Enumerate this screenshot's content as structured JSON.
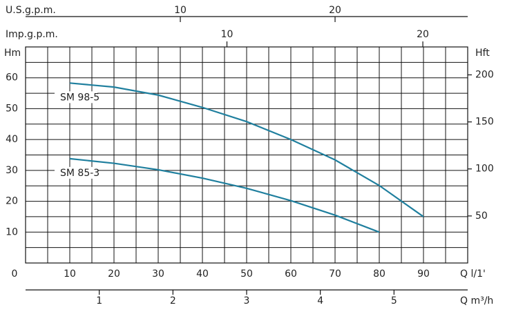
{
  "chart_data": {
    "type": "line",
    "xlabel": "Q l/1'",
    "xlim": [
      0,
      100
    ],
    "xticks": [
      0,
      10,
      20,
      30,
      40,
      50,
      60,
      70,
      80,
      90
    ],
    "xgrid": [
      0,
      5,
      10,
      15,
      20,
      25,
      30,
      35,
      40,
      45,
      50,
      55,
      60,
      65,
      70,
      75,
      80,
      85,
      90,
      95,
      100
    ],
    "ylabel": "Hm",
    "ylim": [
      0,
      70
    ],
    "yticks": [
      10,
      20,
      30,
      40,
      50,
      60
    ],
    "ygrid": [
      0,
      5,
      10,
      15,
      20,
      25,
      30,
      35,
      40,
      45,
      50,
      55,
      60,
      65,
      70
    ],
    "y2label": "Hft",
    "y2lim": [
      0,
      229.7
    ],
    "y2ticks": [
      50,
      100,
      150,
      200
    ],
    "top_axes": [
      {
        "label": "U.S.g.p.m.",
        "lim": [
          0,
          28.57
        ],
        "ticks": [
          10,
          20
        ]
      },
      {
        "label": "Imp.g.p.m.",
        "lim": [
          -0.28,
          22.29
        ],
        "ticks": [
          10,
          20
        ]
      }
    ],
    "bottom_axis2": {
      "label": "Q m³/h",
      "lim": [
        0,
        6
      ],
      "ticks": [
        1,
        2,
        3,
        4,
        5
      ]
    },
    "series": [
      {
        "name": "SM 98-5",
        "color": "#1f7f9e",
        "x": [
          10,
          20,
          30,
          40,
          50,
          60,
          70,
          80,
          90
        ],
        "values": [
          58.3,
          57,
          54.4,
          50.4,
          45.8,
          40,
          33.4,
          25.1,
          15
        ]
      },
      {
        "name": "SM 85-3",
        "color": "#1f7f9e",
        "x": [
          10,
          20,
          30,
          40,
          50,
          60,
          70,
          80
        ],
        "values": [
          33.8,
          32.3,
          30.2,
          27.5,
          24.2,
          20.2,
          15.5,
          10
        ]
      }
    ]
  }
}
